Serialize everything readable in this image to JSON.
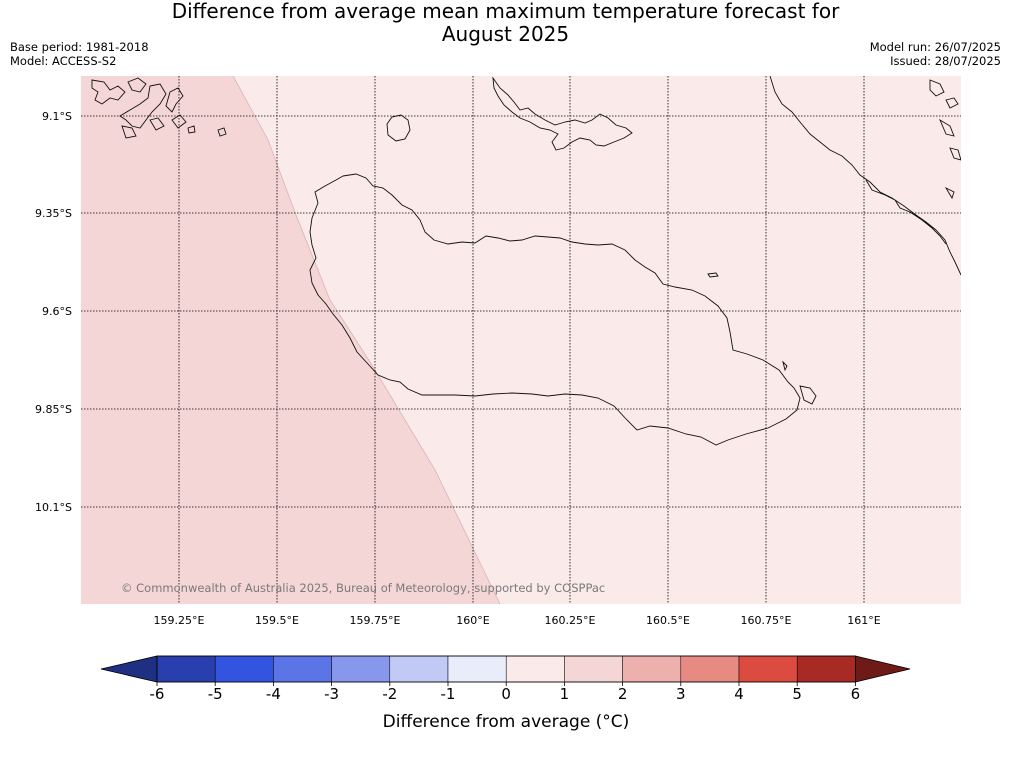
{
  "title": {
    "line1": "Difference from average mean maximum temperature forecast for",
    "line2": "August 2025"
  },
  "meta": {
    "base_period": "Base period: 1981-2018",
    "model": "Model: ACCESS-S2",
    "model_run": "Model run: 26/07/2025",
    "issued": "Issued: 28/07/2025"
  },
  "credit": "© Commonwealth of Australia 2025, Bureau of Meteorology, supported by COSPPac",
  "map": {
    "lon_labels": [
      "159.25°E",
      "159.5°E",
      "159.75°E",
      "160°E",
      "160.25°E",
      "160.5°E",
      "160.75°E",
      "161°E"
    ],
    "lat_labels": [
      "9.1°S",
      "9.35°S",
      "9.6°S",
      "9.85°S",
      "10.1°S"
    ],
    "zones": [
      {
        "category": "1 to 2",
        "color": "#f5d6d6",
        "region": "west"
      },
      {
        "category": "0 to 1",
        "color": "#fbeaea",
        "region": "east"
      }
    ]
  },
  "colorbar": {
    "title": "Difference from average (°C)",
    "ticks": [
      "-6",
      "-5",
      "-4",
      "-3",
      "-2",
      "-1",
      "0",
      "1",
      "2",
      "3",
      "4",
      "5",
      "6"
    ],
    "colors": [
      "#2a3fae",
      "#3254e0",
      "#5b74e6",
      "#8797ec",
      "#c1c9f5",
      "#e8ecfb",
      "#fbeaea",
      "#f5d6d6",
      "#edb0ad",
      "#e78a82",
      "#dc4b3f",
      "#a82a24"
    ],
    "under_color": "#1f2f82",
    "over_color": "#6e1a17"
  }
}
